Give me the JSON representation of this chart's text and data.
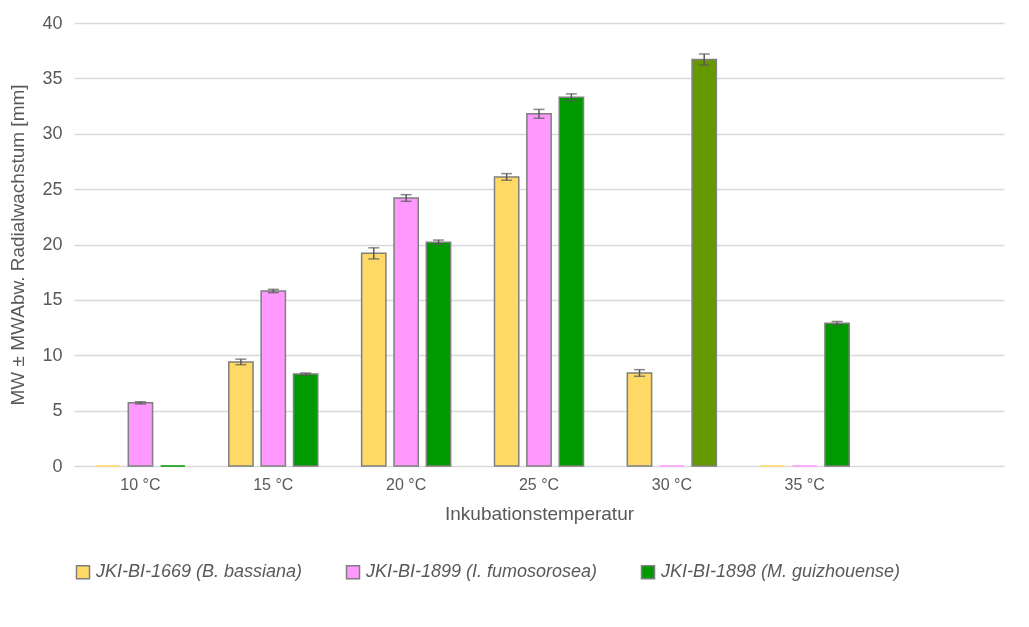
{
  "chart_data": {
    "type": "bar",
    "xlabel": "Inkubationstemperatur",
    "ylabel": "MW ± MWAbw. Radialwachstum [mm]",
    "categories": [
      "10 °C",
      "15 °C",
      "20 °C",
      "25 °C",
      "30 °C",
      "35 °C",
      null
    ],
    "series": [
      {
        "name": "JKI-BI-1669 (B. bassiana)",
        "color": "#ffd966",
        "values": [
          0,
          9.4,
          19.2,
          26.1,
          8.4,
          0,
          null
        ],
        "errors": [
          null,
          0.25,
          0.5,
          0.3,
          0.3,
          null,
          null
        ]
      },
      {
        "name": "JKI-BI-1899 (I. fumosorosea)",
        "color": "#ff99ff",
        "values": [
          5.7,
          15.8,
          24.2,
          31.8,
          0,
          0,
          null
        ],
        "errors": [
          0.1,
          0.15,
          0.3,
          0.4,
          null,
          null,
          null
        ]
      },
      {
        "name": "JKI-BI-1898 (M. guizhouense)",
        "color": "#009900",
        "colors": [
          "#009900",
          "#009900",
          "#009900",
          "#009900",
          "#669900",
          "#009900",
          null
        ],
        "values": [
          0,
          8.3,
          20.2,
          33.3,
          36.7,
          12.9,
          null
        ],
        "errors": [
          null,
          0.1,
          0.2,
          0.3,
          0.5,
          0.15,
          null
        ]
      }
    ],
    "ylim": [
      0,
      40
    ],
    "yticks": [
      0,
      5,
      10,
      15,
      20,
      25,
      30,
      35,
      40
    ],
    "grid": "y",
    "legend": "bottom"
  }
}
